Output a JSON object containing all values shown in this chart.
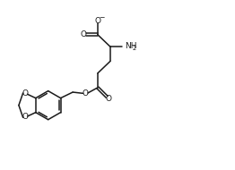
{
  "bg_color": "#ffffff",
  "line_color": "#1a1a1a",
  "line_width": 1.1,
  "fig_width": 2.62,
  "fig_height": 1.9,
  "dpi": 100,
  "text_color": "#1a1a1a",
  "font_size": 6.5,
  "font_size_sub": 4.8,
  "font_size_charge": 5.5,
  "xlim": [
    0,
    10
  ],
  "ylim": [
    0,
    7.3
  ]
}
